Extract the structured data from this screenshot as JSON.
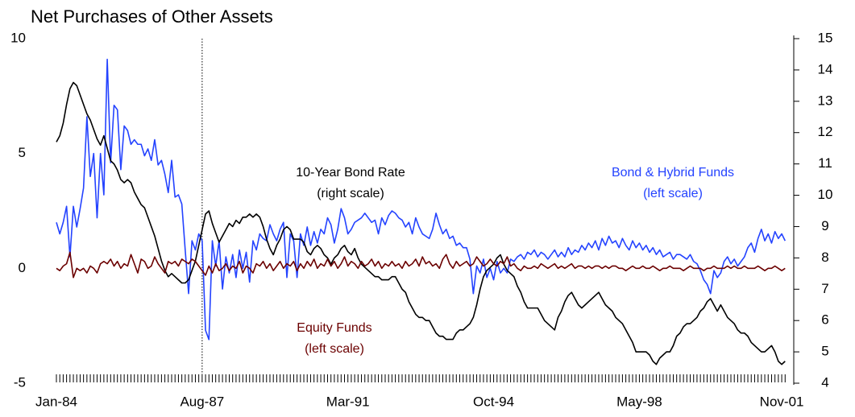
{
  "chart_data": {
    "type": "line",
    "title": "Net Purchases of Other Assets",
    "categories": [
      "Jan-84",
      null,
      null,
      null,
      null,
      null,
      null,
      null,
      null,
      null,
      null,
      null,
      null,
      null,
      null,
      null,
      null,
      null,
      null,
      null,
      null,
      null,
      null,
      null,
      null,
      null,
      null,
      null,
      null,
      null,
      null,
      null,
      null,
      null,
      null,
      null,
      null,
      null,
      null,
      null,
      null,
      null,
      null,
      "Aug-87",
      null,
      null,
      null,
      null,
      null,
      null,
      null,
      null,
      null,
      null,
      null,
      null,
      null,
      null,
      null,
      null,
      null,
      null,
      null,
      null,
      null,
      null,
      null,
      null,
      null,
      null,
      null,
      null,
      null,
      null,
      null,
      null,
      null,
      null,
      null,
      null,
      null,
      null,
      null,
      null,
      null,
      null,
      "Mar-91",
      null,
      null,
      null,
      null,
      null,
      null,
      null,
      null,
      null,
      null,
      null,
      null,
      null,
      null,
      null,
      null,
      null,
      null,
      null,
      null,
      null,
      null,
      null,
      null,
      null,
      null,
      null,
      null,
      null,
      null,
      null,
      null,
      null,
      null,
      null,
      null,
      null,
      null,
      null,
      null,
      null,
      null,
      "Oct-94",
      null,
      null,
      null,
      null,
      null,
      null,
      null,
      null,
      null,
      null,
      null,
      null,
      null,
      null,
      null,
      null,
      null,
      null,
      null,
      null,
      null,
      null,
      null,
      null,
      null,
      null,
      null,
      null,
      null,
      null,
      null,
      null,
      null,
      null,
      null,
      null,
      null,
      null,
      null,
      null,
      null,
      null,
      "May-98",
      null,
      null,
      null,
      null,
      null,
      null,
      null,
      null,
      null,
      null,
      null,
      null,
      null,
      null,
      null,
      null,
      null,
      null,
      null,
      null,
      null,
      null,
      null,
      null,
      null,
      null,
      null,
      null,
      null,
      null,
      null,
      null,
      null,
      null,
      null,
      null,
      null,
      null,
      null,
      null,
      null,
      "Nov-01",
      null
    ],
    "event_line": "Aug-87",
    "ylim": [
      -5,
      10
    ],
    "yticks": [
      -5,
      0,
      5,
      10
    ],
    "y2lim": [
      4,
      15
    ],
    "y2ticks": [
      4,
      5,
      6,
      7,
      8,
      9,
      10,
      11,
      12,
      13,
      14,
      15
    ],
    "series": [
      {
        "name": "10-Year Bond Rate",
        "color": "#000000",
        "axis": "y2",
        "note": "(right scale)",
        "values": [
          11.7,
          11.9,
          12.3,
          12.9,
          13.4,
          13.6,
          13.5,
          13.2,
          12.9,
          12.6,
          12.4,
          12.1,
          11.8,
          11.6,
          11.9,
          11.5,
          11.1,
          11.0,
          10.8,
          10.5,
          10.4,
          10.5,
          10.4,
          10.1,
          9.9,
          9.7,
          9.6,
          9.3,
          9.0,
          8.7,
          8.3,
          7.9,
          7.6,
          7.4,
          7.5,
          7.4,
          7.3,
          7.2,
          7.2,
          7.3,
          7.6,
          7.9,
          8.4,
          8.9,
          9.4,
          9.5,
          9.1,
          8.8,
          8.5,
          8.7,
          8.9,
          9.1,
          9.0,
          9.2,
          9.1,
          9.3,
          9.3,
          9.4,
          9.3,
          9.4,
          9.3,
          9.0,
          8.6,
          8.3,
          8.1,
          8.4,
          8.6,
          8.9,
          9.0,
          8.9,
          8.6,
          8.6,
          8.6,
          8.5,
          8.2,
          8.1,
          8.3,
          8.4,
          8.3,
          8.1,
          8.0,
          7.8,
          8.0,
          8.1,
          8.3,
          8.4,
          8.2,
          8.1,
          8.3,
          8.0,
          7.8,
          7.7,
          7.6,
          7.5,
          7.4,
          7.4,
          7.3,
          7.3,
          7.3,
          7.4,
          7.4,
          7.2,
          7.0,
          6.9,
          6.6,
          6.4,
          6.2,
          6.1,
          6.1,
          6.0,
          6.0,
          5.8,
          5.6,
          5.5,
          5.5,
          5.4,
          5.4,
          5.4,
          5.6,
          5.7,
          5.7,
          5.8,
          5.9,
          6.1,
          6.5,
          7.0,
          7.4,
          7.6,
          7.7,
          7.8,
          8.0,
          8.1,
          7.8,
          7.6,
          7.5,
          7.4,
          7.1,
          6.9,
          6.6,
          6.4,
          6.4,
          6.4,
          6.4,
          6.2,
          6.0,
          5.9,
          5.8,
          5.7,
          6.1,
          6.3,
          6.6,
          6.8,
          6.9,
          6.7,
          6.5,
          6.4,
          6.5,
          6.6,
          6.7,
          6.8,
          6.9,
          6.7,
          6.5,
          6.4,
          6.3,
          6.1,
          6.0,
          5.9,
          5.7,
          5.5,
          5.3,
          5.0,
          5.0,
          5.0,
          5.0,
          4.9,
          4.7,
          4.6,
          4.8,
          4.9,
          5.0,
          5.0,
          5.2,
          5.5,
          5.6,
          5.8,
          5.9,
          5.9,
          6.0,
          6.1,
          6.3,
          6.4,
          6.6,
          6.7,
          6.5,
          6.3,
          6.5,
          6.3,
          6.1,
          6.0,
          5.9,
          5.7,
          5.6,
          5.6,
          5.5,
          5.3,
          5.2,
          5.1,
          5.0,
          5.0,
          5.1,
          5.2,
          5.0,
          4.7,
          4.6,
          4.7
        ]
      },
      {
        "name": "Bond & Hybrid Funds",
        "color": "#2443ff",
        "note": "(left scale)",
        "values": [
          2.0,
          1.5,
          2.0,
          2.7,
          0.5,
          2.7,
          1.8,
          2.6,
          3.5,
          6.6,
          4.0,
          5.0,
          2.2,
          5.0,
          3.2,
          9.1,
          4.6,
          7.1,
          6.9,
          4.3,
          6.2,
          6.0,
          5.4,
          5.6,
          5.4,
          5.4,
          4.9,
          5.2,
          4.7,
          5.6,
          4.5,
          4.7,
          4.1,
          3.3,
          4.7,
          3.1,
          3.2,
          2.8,
          0.8,
          -1.1,
          1.2,
          0.8,
          1.5,
          1.2,
          -2.7,
          -3.1,
          1.2,
          0.1,
          1.2,
          -0.9,
          0.5,
          -0.2,
          0.6,
          -0.4,
          0.8,
          0.0,
          0.7,
          -0.6,
          1.2,
          0.8,
          1.5,
          1.3,
          1.2,
          1.9,
          1.5,
          1.2,
          1.7,
          2.0,
          -0.4,
          1.5,
          1.2,
          -0.4,
          1.5,
          1.0,
          1.8,
          1.0,
          1.6,
          1.1,
          1.7,
          1.5,
          2.2,
          1.9,
          1.1,
          1.7,
          2.6,
          2.2,
          1.5,
          1.7,
          2.0,
          2.1,
          2.2,
          2.4,
          2.2,
          2.0,
          2.1,
          1.5,
          2.2,
          1.9,
          2.3,
          2.5,
          2.4,
          2.2,
          2.1,
          1.8,
          2.0,
          1.5,
          2.2,
          1.8,
          1.5,
          1.4,
          1.3,
          1.7,
          2.4,
          1.9,
          1.5,
          1.7,
          1.3,
          1.4,
          1.0,
          1.1,
          0.9,
          0.9,
          0.4,
          -1.1,
          0.1,
          -0.2,
          0.4,
          -0.4,
          0.0,
          -0.5,
          0.3,
          -0.2,
          0.0,
          -0.2,
          0.4,
          0.3,
          0.5,
          0.6,
          0.4,
          0.7,
          0.6,
          0.8,
          0.5,
          0.7,
          0.6,
          0.4,
          0.6,
          0.8,
          0.5,
          0.7,
          0.5,
          0.9,
          0.6,
          0.8,
          0.7,
          1.0,
          0.8,
          1.1,
          0.9,
          1.2,
          0.8,
          1.3,
          1.0,
          1.4,
          1.1,
          1.2,
          0.9,
          1.3,
          1.0,
          0.8,
          1.2,
          0.9,
          1.1,
          0.8,
          1.0,
          0.7,
          0.9,
          0.6,
          0.8,
          0.5,
          0.6,
          0.7,
          0.4,
          0.6,
          0.6,
          0.5,
          0.4,
          0.6,
          0.3,
          0.2,
          -0.1,
          -0.5,
          -0.7,
          -1.1,
          -0.1,
          -0.4,
          -0.2,
          0.3,
          0.5,
          0.2,
          0.4,
          0.1,
          0.3,
          0.5,
          0.9,
          1.1,
          0.7,
          1.3,
          1.7,
          1.2,
          1.5,
          1.1,
          1.6,
          1.3,
          1.5,
          1.2
        ]
      },
      {
        "name": "Equity Funds",
        "color": "#6b0000",
        "note": "(left scale)",
        "values": [
          0.0,
          -0.1,
          0.1,
          0.2,
          0.7,
          -0.4,
          0.0,
          -0.1,
          0.0,
          -0.2,
          0.1,
          0.0,
          -0.2,
          0.2,
          0.3,
          0.2,
          0.4,
          0.1,
          0.3,
          0.0,
          0.2,
          0.1,
          0.6,
          0.2,
          -0.2,
          0.4,
          0.3,
          0.0,
          0.1,
          0.5,
          0.2,
          0.0,
          -0.2,
          0.3,
          0.2,
          0.3,
          0.1,
          0.4,
          0.3,
          0.2,
          0.4,
          0.3,
          0.1,
          -0.1,
          -0.3,
          0.1,
          -0.2,
          0.2,
          -0.1,
          0.0,
          0.2,
          -0.1,
          0.1,
          0.0,
          0.3,
          -0.2,
          0.1,
          0.0,
          -0.2,
          0.2,
          0.1,
          0.3,
          0.0,
          0.2,
          -0.1,
          0.1,
          0.3,
          0.0,
          0.2,
          0.1,
          0.3,
          -0.1,
          0.2,
          0.0,
          0.3,
          0.1,
          0.4,
          0.0,
          0.2,
          0.1,
          0.4,
          0.1,
          0.3,
          0.0,
          0.2,
          0.5,
          0.1,
          0.3,
          0.2,
          0.0,
          0.3,
          0.1,
          0.2,
          0.4,
          0.1,
          0.3,
          0.0,
          0.2,
          0.1,
          0.3,
          0.1,
          0.2,
          0.0,
          0.3,
          0.1,
          0.2,
          0.4,
          0.1,
          0.5,
          0.2,
          0.3,
          0.1,
          0.2,
          0.0,
          0.4,
          0.6,
          0.2,
          0.0,
          0.3,
          0.1,
          0.2,
          0.3,
          0.1,
          0.2,
          0.5,
          0.3,
          0.1,
          0.2,
          0.4,
          0.2,
          0.1,
          0.3,
          0.2,
          0.5,
          0.1,
          0.2,
          0.0,
          -0.1,
          0.1,
          0.0,
          0.0,
          0.1,
          0.0,
          0.2,
          0.1,
          0.0,
          0.1,
          0.2,
          0.0,
          0.1,
          0.0,
          0.1,
          0.2,
          0.0,
          0.1,
          0.1,
          0.0,
          0.1,
          0.0,
          0.1,
          0.1,
          0.0,
          0.1,
          0.0,
          0.1,
          0.1,
          0.0,
          0.0,
          -0.1,
          0.0,
          0.1,
          0.0,
          0.0,
          0.1,
          0.0,
          0.0,
          0.1,
          0.0,
          -0.1,
          0.0,
          0.0,
          0.1,
          0.0,
          0.0,
          0.0,
          -0.1,
          0.0,
          0.1,
          0.0,
          0.0,
          0.0,
          -0.1,
          0.0,
          0.0,
          0.1,
          0.0,
          0.0,
          0.0,
          0.1,
          0.0,
          0.1,
          0.0,
          0.0,
          0.1,
          0.0,
          0.0,
          0.0,
          0.1,
          0.0,
          -0.1,
          0.0,
          0.0,
          0.1,
          0.0,
          -0.1,
          0.0
        ]
      }
    ]
  }
}
